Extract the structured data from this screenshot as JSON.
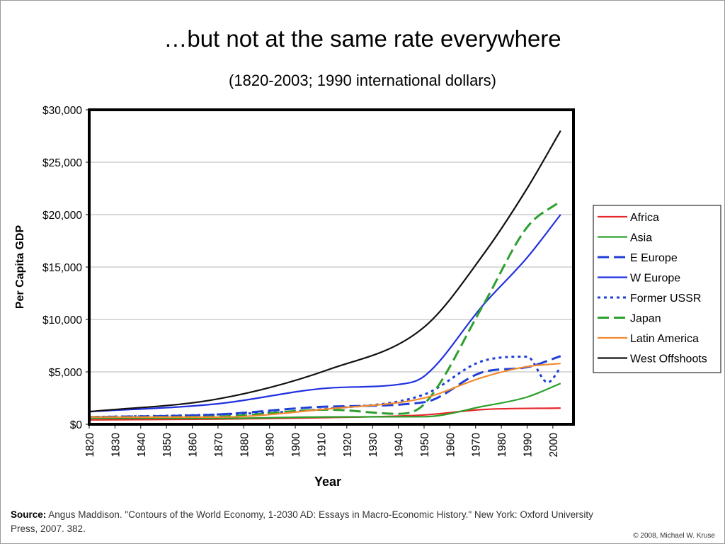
{
  "slide": {
    "title": "…but not at the same rate everywhere",
    "subtitle": "(1820-2003; 1990 international dollars)",
    "source_label": "Source:",
    "source_text": " Angus Maddison. \"Contours of the World Economy, 1-2030 AD: Essays in Macro-Economic History.\" New York: Oxford University Press, 2007. 382.",
    "copyright": "© 2008, Michael W. Kruse"
  },
  "chart_data": {
    "type": "line",
    "title": "",
    "xlabel": "Year",
    "ylabel": "Per Capita GDP",
    "xlim": [
      1820,
      2008
    ],
    "ylim": [
      0,
      30000
    ],
    "x_ticks": [
      1820,
      1830,
      1840,
      1850,
      1860,
      1870,
      1880,
      1890,
      1900,
      1910,
      1920,
      1930,
      1940,
      1950,
      1960,
      1970,
      1980,
      1990,
      2000
    ],
    "y_ticks": [
      0,
      5000,
      10000,
      15000,
      20000,
      25000,
      30000
    ],
    "y_tick_labels": [
      "$0",
      "$5,000",
      "$10,000",
      "$15,000",
      "$20,000",
      "$25,000",
      "$30,000"
    ],
    "grid": "horizontal",
    "legend_position": "right",
    "series": [
      {
        "name": "Africa",
        "color": "#e8262a",
        "dash": "solid",
        "x": [
          1820,
          1870,
          1913,
          1950,
          1973,
          2003
        ],
        "y": [
          420,
          500,
          640,
          890,
          1410,
          1550
        ]
      },
      {
        "name": "Asia",
        "color": "#2ca02c",
        "dash": "solid",
        "x": [
          1820,
          1870,
          1913,
          1950,
          1973,
          1990,
          2003
        ],
        "y": [
          580,
          560,
          700,
          720,
          1720,
          2600,
          3900
        ]
      },
      {
        "name": "E Europe",
        "color": "#1f3fd6",
        "dash": "long",
        "x": [
          1820,
          1870,
          1913,
          1950,
          1973,
          1990,
          2003
        ],
        "y": [
          680,
          940,
          1690,
          2110,
          4990,
          5450,
          6500
        ]
      },
      {
        "name": "W Europe",
        "color": "#2030e0",
        "dash": "solid",
        "x": [
          1820,
          1870,
          1913,
          1940,
          1950,
          1973,
          1990,
          2003
        ],
        "y": [
          1200,
          1960,
          3460,
          3800,
          4580,
          11400,
          15900,
          20000
        ]
      },
      {
        "name": "Former USSR",
        "color": "#1f3fd6",
        "dash": "dot",
        "x": [
          1820,
          1870,
          1913,
          1950,
          1973,
          1990,
          1998,
          2003
        ],
        "y": [
          690,
          940,
          1490,
          2840,
          6060,
          6450,
          4000,
          5400
        ]
      },
      {
        "name": "Japan",
        "color": "#2ca02c",
        "dash": "long",
        "x": [
          1820,
          1870,
          1913,
          1940,
          1950,
          1973,
          1990,
          2003
        ],
        "y": [
          670,
          740,
          1390,
          1000,
          1920,
          11400,
          18800,
          21300
        ]
      },
      {
        "name": "Latin America",
        "color": "#f28a30",
        "dash": "solid",
        "x": [
          1820,
          1870,
          1913,
          1950,
          1973,
          1990,
          2003
        ],
        "y": [
          690,
          680,
          1480,
          2510,
          4500,
          5500,
          5800
        ]
      },
      {
        "name": "West Offshoots",
        "color": "#111111",
        "dash": "solid",
        "x": [
          1820,
          1870,
          1913,
          1950,
          1973,
          1990,
          2003
        ],
        "y": [
          1200,
          2420,
          5230,
          9270,
          16200,
          22500,
          28000
        ]
      }
    ]
  }
}
